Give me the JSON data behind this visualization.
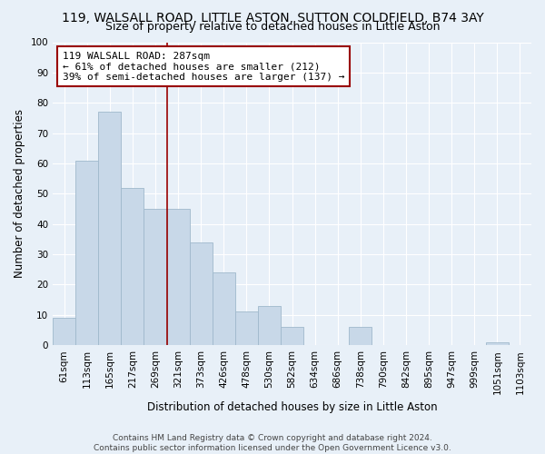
{
  "title": "119, WALSALL ROAD, LITTLE ASTON, SUTTON COLDFIELD, B74 3AY",
  "subtitle": "Size of property relative to detached houses in Little Aston",
  "xlabel": "Distribution of detached houses by size in Little Aston",
  "ylabel": "Number of detached properties",
  "bar_labels": [
    "61sqm",
    "113sqm",
    "165sqm",
    "217sqm",
    "269sqm",
    "321sqm",
    "373sqm",
    "426sqm",
    "478sqm",
    "530sqm",
    "582sqm",
    "634sqm",
    "686sqm",
    "738sqm",
    "790sqm",
    "842sqm",
    "895sqm",
    "947sqm",
    "999sqm",
    "1051sqm",
    "1103sqm"
  ],
  "bar_values": [
    9,
    61,
    77,
    52,
    45,
    45,
    34,
    24,
    11,
    13,
    6,
    0,
    0,
    6,
    0,
    0,
    0,
    0,
    0,
    1,
    0
  ],
  "bar_color": "#c8d8e8",
  "bar_edge_color": "#a0b8cc",
  "ylim": [
    0,
    100
  ],
  "yticks": [
    0,
    10,
    20,
    30,
    40,
    50,
    60,
    70,
    80,
    90,
    100
  ],
  "property_label": "119 WALSALL ROAD: 287sqm",
  "annotation_line1": "← 61% of detached houses are smaller (212)",
  "annotation_line2": "39% of semi-detached houses are larger (137) →",
  "vline_x": 4.5,
  "footer1": "Contains HM Land Registry data © Crown copyright and database right 2024.",
  "footer2": "Contains public sector information licensed under the Open Government Licence v3.0.",
  "background_color": "#e8f0f8",
  "plot_background": "#e8f0f8",
  "grid_color": "#ffffff",
  "title_fontsize": 10,
  "subtitle_fontsize": 9,
  "axis_label_fontsize": 8.5,
  "tick_fontsize": 7.5,
  "annotation_fontsize": 8,
  "footer_fontsize": 6.5
}
